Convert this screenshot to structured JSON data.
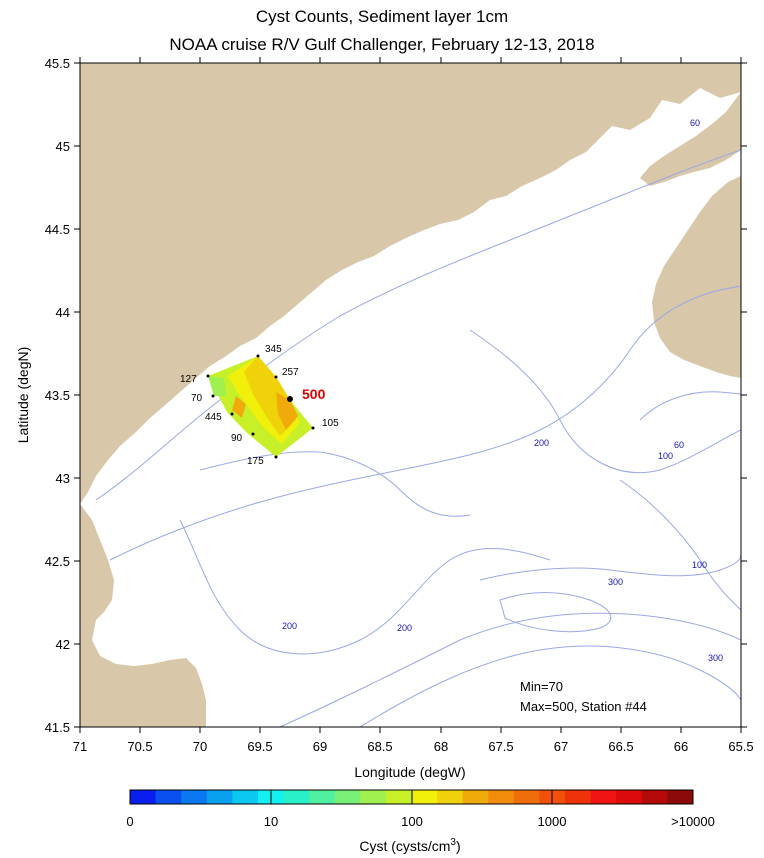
{
  "title": "Cyst Counts, Sediment layer 1cm",
  "subtitle": "NOAA cruise R/V Gulf Challenger, February 12-13, 2018",
  "x_axis": {
    "label": "Longitude (degW)",
    "ticks": [
      "71",
      "70.5",
      "70",
      "69.5",
      "69",
      "68.5",
      "68",
      "67.5",
      "67",
      "66.5",
      "66",
      "65.5"
    ]
  },
  "y_axis": {
    "label": "Latitude (degN)",
    "ticks": [
      "45.5",
      "45",
      "44.5",
      "44",
      "43.5",
      "43",
      "42.5",
      "42",
      "41.5"
    ]
  },
  "colorbar": {
    "tick_labels": [
      "0",
      "10",
      "100",
      "1000",
      ">10000"
    ],
    "label": "Cyst (cysts/cm",
    "label_sup": "3",
    "label_end": ")",
    "colors": [
      "#0a1ef0",
      "#0a50f0",
      "#0a78f0",
      "#0aa0f0",
      "#0ac8f0",
      "#14f0f0",
      "#28f0c8",
      "#50f0a0",
      "#78f078",
      "#a0f050",
      "#c8f028",
      "#f0f00a",
      "#f0d20a",
      "#f0aa0a",
      "#f08c0a",
      "#f06e0a",
      "#f0500a",
      "#f0320a",
      "#f01414",
      "#dc0a0a",
      "#b40a0a",
      "#8c0a0a"
    ]
  },
  "stations": [
    {
      "label": "345",
      "value": 345
    },
    {
      "label": "257",
      "value": 257
    },
    {
      "label": "127",
      "value": 127
    },
    {
      "label": "70",
      "value": 70
    },
    {
      "label": "445",
      "value": 445
    },
    {
      "label": "90",
      "value": 90
    },
    {
      "label": "175",
      "value": 175
    },
    {
      "label": "105",
      "value": 105
    },
    {
      "label": "500",
      "value": 500
    }
  ],
  "depth_labels": [
    "60",
    "200",
    "60",
    "100",
    "100",
    "300",
    "200",
    "200",
    "300"
  ],
  "summary": {
    "min": "Min=70",
    "max": "Max=500, Station #44"
  },
  "colors": {
    "land": "#d8c7a8",
    "contour": "#9aa8e6",
    "highlight": "#e00000"
  }
}
